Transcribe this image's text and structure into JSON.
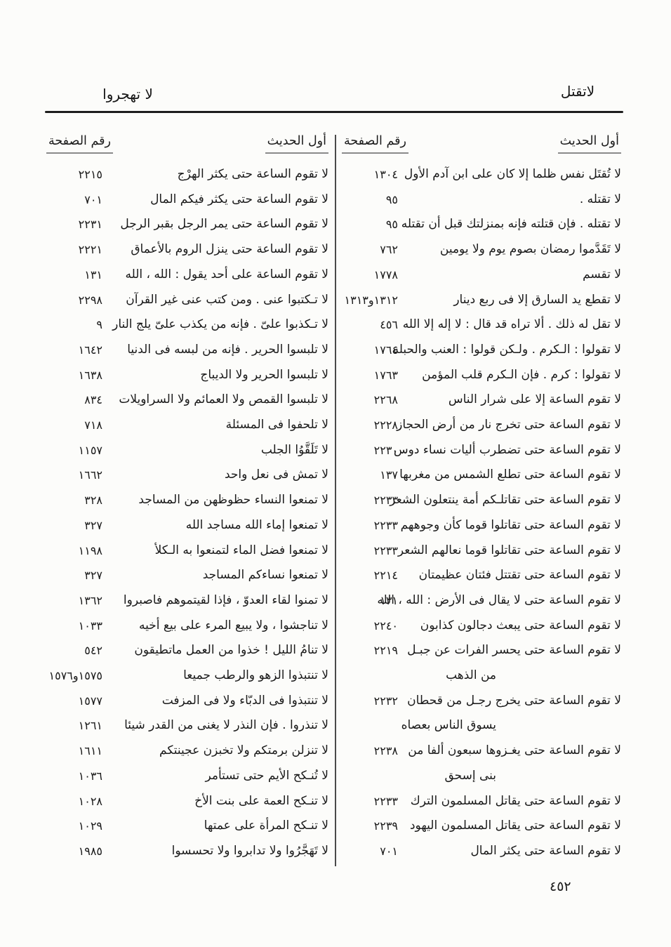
{
  "colors": {
    "paper": "#fcfcfa",
    "ink": "#1a1a1a",
    "rule": "#1d1d1d"
  },
  "page": {
    "running_head_left": "لا تهجروا",
    "running_head_right": "لاتقتل",
    "folio_number": "٤٥٢"
  },
  "table": {
    "right_column": {
      "header_hadith": "أول الحديث",
      "header_page": "رقم الصفحة",
      "rows": [
        {
          "text": "لا تُقتَل نفس ظلما إلا كان على ابن آدم الأول",
          "page": "١٣٠٤"
        },
        {
          "text": "لا تقتله .",
          "page": "٩٥"
        },
        {
          "text": "لا تقتله . فإن قتلته فإنه بمنزلتك قبل أن تقتله",
          "page": "٩٥"
        },
        {
          "text": "لا تَقَدَّموا رمضان بصوم يوم ولا يومين",
          "page": "٧٦٢"
        },
        {
          "text": "لا تقسم",
          "page": "١٧٧٨"
        },
        {
          "text": "لا تقطع يد السارق إلا فى ربع دينار",
          "page": "١٣١٢و١٣١٣"
        },
        {
          "text": "لا تقل له ذلك . ألا تراه قد قال : لا إله إلا الله",
          "page": "٤٥٦"
        },
        {
          "text": "لا تقولوا : الـكرم . ولـكن قولوا : العنب والحبلة",
          "page": "١٧٦٤"
        },
        {
          "text": "لا تقولوا : كرم . فإن الـكرم قلب المؤمن",
          "page": "١٧٦٣"
        },
        {
          "text": "لا تقوم الساعة إلا على شرار الناس",
          "page": "٢٢٦٨"
        },
        {
          "text": "لا تقوم الساعة حتى تخرج نار من أرض الحجاز",
          "page": "٢٢٢٨"
        },
        {
          "text": "لا تقوم الساعة حتى تضطرب أليات نساء دوس",
          "page": "٢٢٣٠"
        },
        {
          "text": "لا تقوم الساعة حتى تطلع الشمس من مغربها",
          "page": "١٣٧"
        },
        {
          "text": "لا تقوم الساعة حتى تقاتلـكم أمة ينتعلون الشعر",
          "page": "٢٢٣٣"
        },
        {
          "text": "لا تقوم الساعة حتى تقاتلوا قوما كأن وجوههم",
          "page": "٢٢٣٣"
        },
        {
          "text": "لا تقوم الساعة حتى تقاتلوا قوما نعالهم الشعر",
          "page": "٢٢٣٣"
        },
        {
          "text": "لا تقوم الساعة حتى تقتتل فئتان عظيمتان",
          "page": "٢٢١٤"
        },
        {
          "text": "لا تقوم الساعة حتى لا يقال فى الأرض : الله ، الله",
          "page": "١٣١"
        },
        {
          "text": "لا تقوم الساعة حتى يبعث دجالون كذابون",
          "page": "٢٢٤٠"
        },
        {
          "text": "لا تقوم الساعة حتى يحسر الفرات عن جبـل",
          "text2": "من الذهب",
          "page": "٢٢١٩"
        },
        {
          "text": "لا تقوم الساعة حتى يخرج رجـل من قحطان",
          "text2": "يسوق الناس بعصاه",
          "page": "٢٢٣٢"
        },
        {
          "text": "لا تقوم الساعة حتى يغـزوها سبعون ألفا من",
          "text2": "بنى إسحق",
          "page": "٢٢٣٨"
        },
        {
          "text": "لا تقوم الساعة حتى يقاتل المسلمون الترك",
          "page": "٢٢٣٣"
        },
        {
          "text": "لا تقوم الساعة حتى يقاتل المسلمون اليهود",
          "page": "٢٢٣٩"
        },
        {
          "text": "لا تقوم الساعة حتى يكثر المال",
          "page": "٧٠١"
        }
      ]
    },
    "left_column": {
      "header_hadith": "أول الحديث",
      "header_page": "رقم الصفحة",
      "rows": [
        {
          "text": "لا تقوم الساعة حتى يكثر الهرْج",
          "page": "٢٢١٥"
        },
        {
          "text": "لا تقوم الساعة حتى يكثر فيكم المال",
          "page": "٧٠١"
        },
        {
          "text": "لا تقوم الساعة حتى يمر الرجل بقبر الرجل",
          "page": "٢٢٣١"
        },
        {
          "text": "لا تقوم الساعة حتى ينزل الروم بالأعماق",
          "page": "٢٢٢١"
        },
        {
          "text": "لا تقوم الساعة على أحد يقول : الله ، الله",
          "page": "١٣١"
        },
        {
          "text": "لا تـكتبوا عنى . ومن كتب عنى غير القرآن",
          "page": "٢٢٩٨"
        },
        {
          "text": "لا تـكذبوا علىّ . فإنه من يكذب علىّ يلج النار",
          "page": "٩"
        },
        {
          "text": "لا تلبسوا الحرير . فإنه من لبسه فى الدنيا",
          "page": "١٦٤٢"
        },
        {
          "text": "لا تلبسوا الحرير ولا الديباج",
          "page": "١٦٣٨"
        },
        {
          "text": "لا تلبسوا القمص ولا العمائم ولا السراويلات",
          "page": "٨٣٤"
        },
        {
          "text": "لا تلحفوا فى المسئلة",
          "page": "٧١٨"
        },
        {
          "text": "لا تَلَقَّوُا الجلب",
          "page": "١١٥٧"
        },
        {
          "text": "لا تمش فى نعل واحد",
          "page": "١٦٦٢"
        },
        {
          "text": "لا تمنعوا النساء حظوظهن من المساجد",
          "page": "٣٢٨"
        },
        {
          "text": "لا تمنعوا إماء الله مساجد الله",
          "page": "٣٢٧"
        },
        {
          "text": "لا تمنعوا فضل الماء لتمنعوا به الـكلأ",
          "page": "١١٩٨"
        },
        {
          "text": "لا تمنعوا نساءكم المساجد",
          "page": "٣٢٧"
        },
        {
          "text": "لا تمنوا لقاء العدوّ ، فإذا لقيتموهم فاصبروا",
          "page": "١٣٦٢"
        },
        {
          "text": "لا تناجشوا ، ولا يبيع المرء على بيع أخيه",
          "page": "١٠٣٣"
        },
        {
          "text": "لا تنامُ الليل ! خذوا من العمل ماتطيقون",
          "page": "٥٤٢"
        },
        {
          "text": "لا تنتبذوا الزهو والرطب جميعا",
          "page": "١٥٧٥و١٥٧٦"
        },
        {
          "text": "لا تنتبذوا فى الدبّاء ولا فى المزفت",
          "page": "١٥٧٧"
        },
        {
          "text": "لا تنذروا . فإن النذر لا يغنى من القدر شيئا",
          "page": "١٢٦١"
        },
        {
          "text": "لا تنزلن برمتكم ولا تخبزن عجينتكم",
          "page": "١٦١١"
        },
        {
          "text": "لا تُنـكح الأيم حتى تستأمر",
          "page": "١٠٣٦"
        },
        {
          "text": "لا تنـكح العمة على بنت الأخ",
          "page": "١٠٢٨"
        },
        {
          "text": "لا تنـكح المرأة على عمتها",
          "page": "١٠٢٩"
        },
        {
          "text": "لا تَهَجَّرُوا ولا تدابروا ولا تحسسوا",
          "page": "١٩٨٥"
        }
      ]
    }
  }
}
